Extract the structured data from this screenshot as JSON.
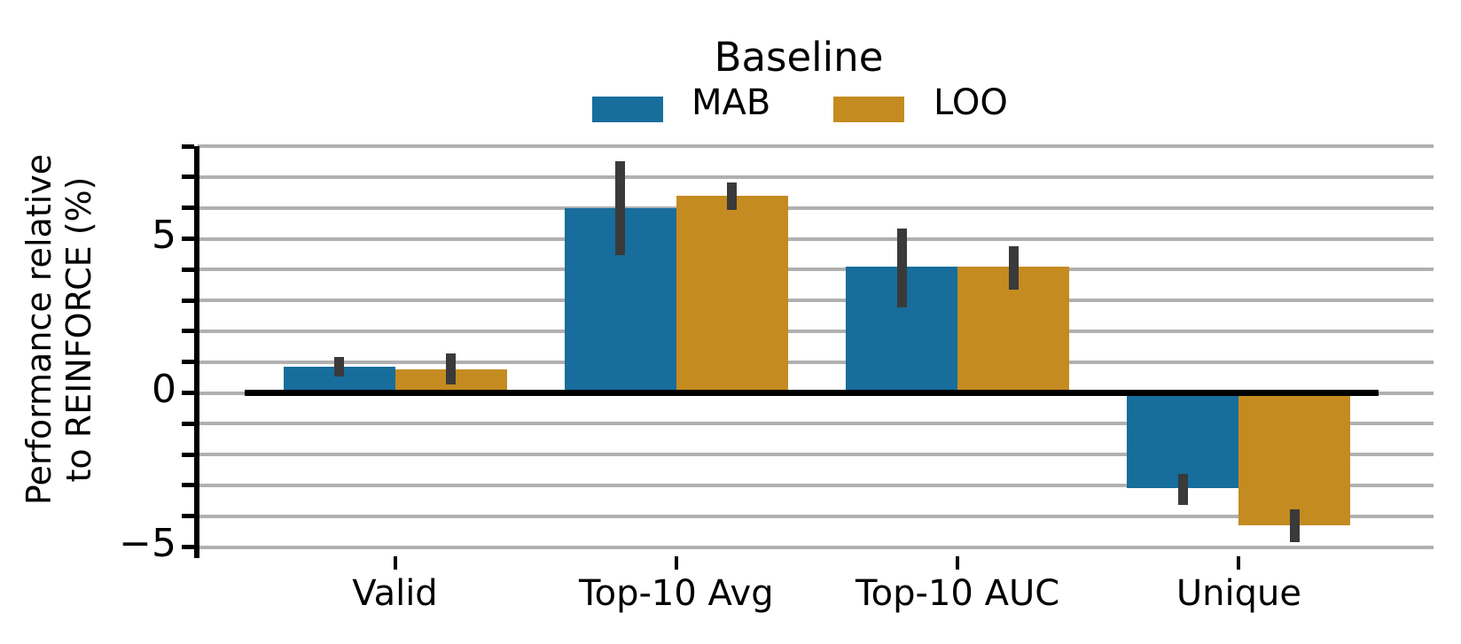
{
  "chart_data": {
    "type": "bar",
    "title": "",
    "categories": [
      "Valid",
      "Top-10 Avg",
      "Top-10 AUC",
      "Unique"
    ],
    "series": [
      {
        "name": "MAB",
        "color": "#176d9c",
        "values": [
          0.85,
          6.0,
          4.1,
          -3.1
        ],
        "err_low": [
          0.53,
          4.46,
          2.78,
          -3.64
        ],
        "err_high": [
          1.17,
          7.52,
          5.32,
          -2.63
        ]
      },
      {
        "name": "LOO",
        "color": "#c48b20",
        "values": [
          0.75,
          6.4,
          4.1,
          -4.3
        ],
        "err_low": [
          0.26,
          5.93,
          3.36,
          -4.83
        ],
        "err_high": [
          1.27,
          6.82,
          4.75,
          -3.78
        ]
      }
    ],
    "legend": {
      "title": "Baseline",
      "position": "top-center",
      "items": [
        {
          "label": "MAB",
          "color": "#176d9c"
        },
        {
          "label": "LOO",
          "color": "#c48b20"
        }
      ]
    },
    "xlabel": "",
    "ylabel_display": "Performance relative\nto REINFORCE (%)",
    "ylim": [
      -5.35,
      8.0
    ],
    "grid": "horizontal",
    "grid_step": 1,
    "yticks": [
      {
        "v": 5,
        "label": "5"
      },
      {
        "v": 0,
        "label": "0"
      },
      {
        "v": -5,
        "label": "−5"
      }
    ],
    "zero_line": true,
    "colors": {
      "grid": "#b0b0b0",
      "axis": "#000000",
      "error_bar": "#3a3a3a",
      "background": "#ffffff"
    }
  }
}
